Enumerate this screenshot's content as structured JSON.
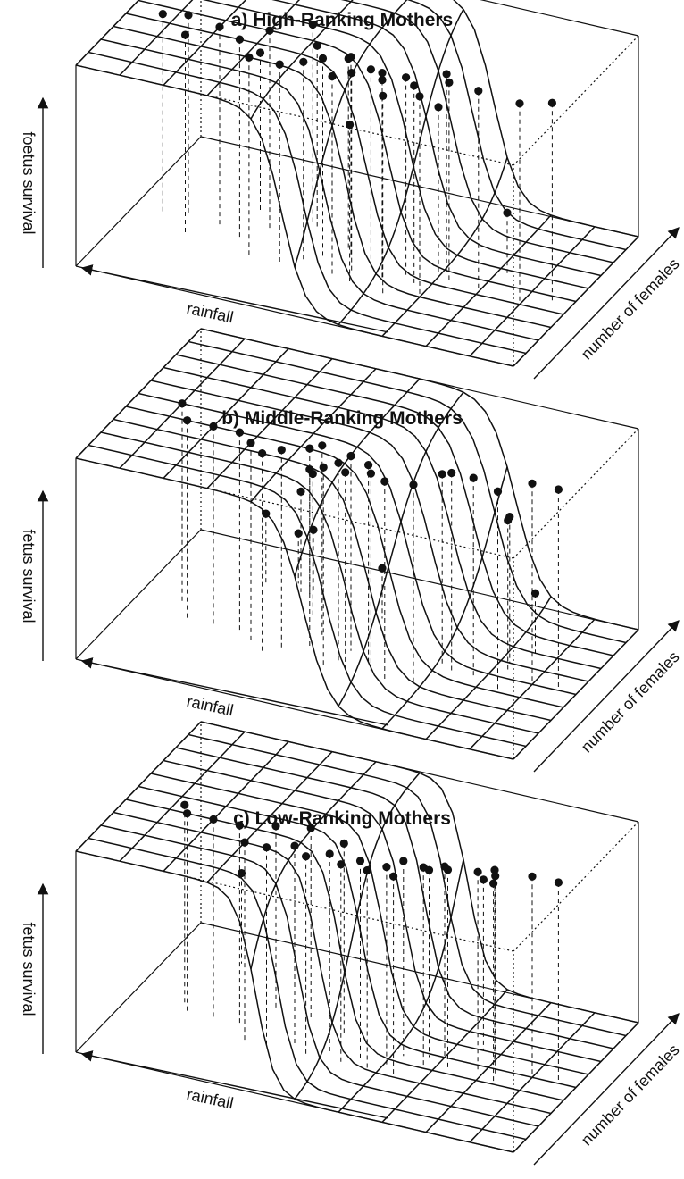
{
  "chart_data": [
    {
      "type": "surface3d",
      "title": "a) High-Ranking Mothers",
      "xlabel": "rainfall",
      "ylabel": "number of females",
      "zlabel": "foetus survival",
      "zlim": [
        0,
        1
      ],
      "grid": true,
      "surface_shape": "logistic",
      "surface_sharpness": 4.5,
      "surface_midline": [
        0.45,
        0.4
      ],
      "points": [
        [
          0.04,
          0.45,
          1.0
        ],
        [
          0.1,
          0.4,
          1.0
        ],
        [
          0.2,
          0.42,
          1.0
        ],
        [
          0.27,
          0.43,
          1.0
        ],
        [
          0.29,
          0.48,
          1.0
        ],
        [
          0.3,
          0.3,
          1.0
        ],
        [
          0.33,
          0.36,
          1.0
        ],
        [
          0.36,
          0.4,
          1.0
        ],
        [
          0.4,
          0.35,
          1.0
        ],
        [
          0.44,
          0.4,
          1.0
        ],
        [
          0.37,
          0.25,
          1.0
        ],
        [
          0.47,
          0.35,
          1.0
        ],
        [
          0.5,
          0.3,
          1.0
        ],
        [
          0.55,
          0.4,
          1.0
        ],
        [
          0.58,
          0.35,
          1.0
        ],
        [
          0.62,
          0.3,
          1.0
        ],
        [
          0.69,
          0.3,
          1.0
        ],
        [
          0.74,
          0.4,
          1.0
        ],
        [
          0.8,
          0.45,
          1.0
        ],
        [
          0.85,
          0.35,
          1.0
        ],
        [
          0.88,
          0.48,
          1.0
        ],
        [
          0.93,
          0.45,
          1.0
        ],
        [
          0.63,
          0.6,
          1.0
        ],
        [
          0.7,
          0.5,
          1.0
        ],
        [
          0.5,
          0.45,
          1.0
        ],
        [
          0.46,
          0.3,
          0.78
        ],
        [
          0.62,
          0.6,
          0.9
        ],
        [
          0.3,
          0.45,
          0.85
        ],
        [
          0.75,
          0.6,
          0.8
        ],
        [
          0.18,
          0.58,
          0.3
        ],
        [
          0.52,
          0.5,
          0.95
        ],
        [
          0.42,
          0.42,
          0.98
        ]
      ]
    },
    {
      "type": "surface3d",
      "title": "b) Middle-Ranking Mothers",
      "xlabel": "rainfall",
      "ylabel": "number of females",
      "zlabel": "fetus survival",
      "zlim": [
        0,
        1
      ],
      "grid": true,
      "surface_shape": "logistic",
      "surface_sharpness": 4.0,
      "surface_midline": [
        0.4,
        0.4
      ],
      "points": [
        [
          0.04,
          0.5,
          1.0
        ],
        [
          0.1,
          0.5,
          1.0
        ],
        [
          0.15,
          0.4,
          1.0
        ],
        [
          0.22,
          0.45,
          1.0
        ],
        [
          0.27,
          0.45,
          1.0
        ],
        [
          0.32,
          0.32,
          1.0
        ],
        [
          0.38,
          0.3,
          1.0
        ],
        [
          0.42,
          0.33,
          1.0
        ],
        [
          0.44,
          0.38,
          1.0
        ],
        [
          0.47,
          0.3,
          1.0
        ],
        [
          0.5,
          0.35,
          1.0
        ],
        [
          0.52,
          0.3,
          1.0
        ],
        [
          0.58,
          0.4,
          1.0
        ],
        [
          0.63,
          0.35,
          1.0
        ],
        [
          0.66,
          0.3,
          1.0
        ],
        [
          0.7,
          0.35,
          1.0
        ],
        [
          0.74,
          0.4,
          1.0
        ],
        [
          0.8,
          0.4,
          1.0
        ],
        [
          0.86,
          0.4,
          1.0
        ],
        [
          0.9,
          0.5,
          1.0
        ],
        [
          0.3,
          0.48,
          0.96
        ],
        [
          0.5,
          0.45,
          0.97
        ],
        [
          0.58,
          0.5,
          0.95
        ],
        [
          0.17,
          0.55,
          0.75
        ],
        [
          0.18,
          0.6,
          0.73
        ],
        [
          0.63,
          0.6,
          0.72
        ],
        [
          0.68,
          0.75,
          0.62
        ],
        [
          0.7,
          0.75,
          0.5
        ],
        [
          0.68,
          0.78,
          0.3
        ],
        [
          0.15,
          0.7,
          0.3
        ],
        [
          0.5,
          0.7,
          0.25
        ],
        [
          0.72,
          0.8,
          0.25
        ],
        [
          0.78,
          0.75,
          0.35
        ]
      ]
    },
    {
      "type": "surface3d",
      "title": "c) Low-Ranking Mothers",
      "xlabel": "rainfall",
      "ylabel": "number of females",
      "zlabel": "fetus survival",
      "zlim": [
        0,
        1
      ],
      "grid": true,
      "surface_shape": "logistic",
      "surface_sharpness": 5.5,
      "surface_midline": [
        0.5,
        0.45
      ],
      "points": [
        [
          0.04,
          0.5,
          1.0
        ],
        [
          0.1,
          0.5,
          1.0
        ],
        [
          0.16,
          0.4,
          1.0
        ],
        [
          0.17,
          0.45,
          1.0
        ],
        [
          0.21,
          0.45,
          1.0
        ],
        [
          0.27,
          0.42,
          1.0
        ],
        [
          0.32,
          0.4,
          1.0
        ],
        [
          0.36,
          0.3,
          1.0
        ],
        [
          0.39,
          0.35,
          1.0
        ],
        [
          0.42,
          0.3,
          1.0
        ],
        [
          0.45,
          0.35,
          1.0
        ],
        [
          0.48,
          0.3,
          1.0
        ],
        [
          0.52,
          0.35,
          1.0
        ],
        [
          0.56,
          0.3,
          1.0
        ],
        [
          0.6,
          0.35,
          1.0
        ],
        [
          0.65,
          0.3,
          1.0
        ],
        [
          0.7,
          0.3,
          1.0
        ],
        [
          0.74,
          0.4,
          1.0
        ],
        [
          0.8,
          0.4,
          1.0
        ],
        [
          0.86,
          0.4,
          1.0
        ],
        [
          0.88,
          0.45,
          1.0
        ],
        [
          0.3,
          0.5,
          0.95
        ],
        [
          0.38,
          0.45,
          0.97
        ],
        [
          0.53,
          0.5,
          0.95
        ],
        [
          0.62,
          0.55,
          0.95
        ],
        [
          0.7,
          0.55,
          0.92
        ],
        [
          0.33,
          0.48,
          0.93
        ],
        [
          0.2,
          0.55,
          0.95
        ],
        [
          0.24,
          0.6,
          0.85
        ],
        [
          0.85,
          0.8,
          0.45
        ]
      ]
    }
  ]
}
